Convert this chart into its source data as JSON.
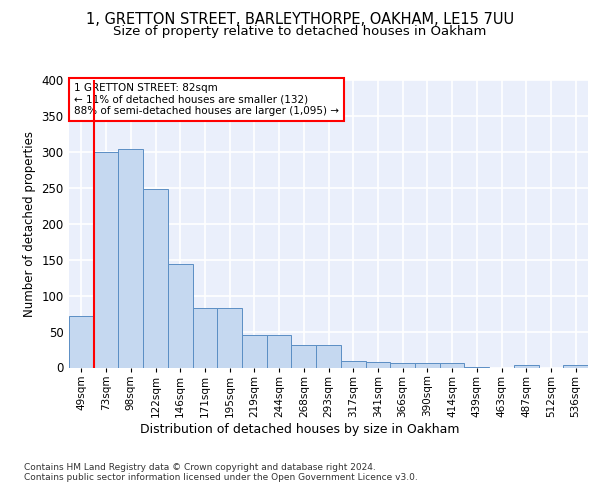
{
  "title1": "1, GRETTON STREET, BARLEYTHORPE, OAKHAM, LE15 7UU",
  "title2": "Size of property relative to detached houses in Oakham",
  "xlabel": "Distribution of detached houses by size in Oakham",
  "ylabel": "Number of detached properties",
  "categories": [
    "49sqm",
    "73sqm",
    "98sqm",
    "122sqm",
    "146sqm",
    "171sqm",
    "195sqm",
    "219sqm",
    "244sqm",
    "268sqm",
    "293sqm",
    "317sqm",
    "341sqm",
    "366sqm",
    "390sqm",
    "414sqm",
    "439sqm",
    "463sqm",
    "487sqm",
    "512sqm",
    "536sqm"
  ],
  "values": [
    72,
    300,
    304,
    249,
    144,
    83,
    83,
    45,
    45,
    32,
    32,
    9,
    8,
    6,
    6,
    6,
    1,
    0,
    4,
    0,
    3
  ],
  "bar_color": "#c5d8f0",
  "bar_edge_color": "#5b8ec4",
  "marker_label": "1 GRETTON STREET: 82sqm",
  "annotation_line1": "← 11% of detached houses are smaller (132)",
  "annotation_line2": "88% of semi-detached houses are larger (1,095) →",
  "annotation_box_color": "white",
  "annotation_box_edge": "red",
  "marker_color": "red",
  "vline_x": 0.5,
  "footer1": "Contains HM Land Registry data © Crown copyright and database right 2024.",
  "footer2": "Contains public sector information licensed under the Open Government Licence v3.0.",
  "ylim": [
    0,
    400
  ],
  "yticks": [
    0,
    50,
    100,
    150,
    200,
    250,
    300,
    350,
    400
  ],
  "background_color": "#eaeffb",
  "grid_color": "white",
  "title_fontsize": 10.5,
  "subtitle_fontsize": 9.5
}
